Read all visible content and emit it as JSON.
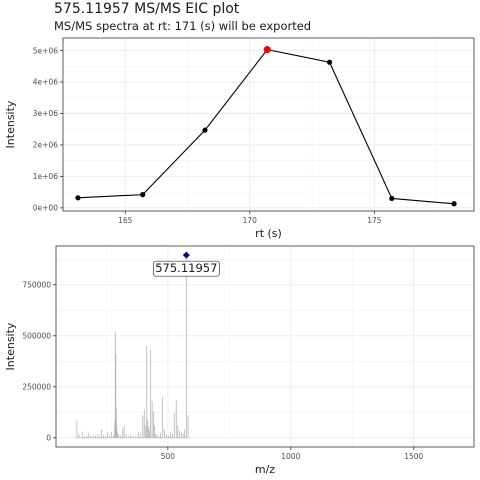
{
  "header": {
    "title": "575.11957 MS/MS EIC plot",
    "subtitle": "MS/MS spectra at rt: 171 (s) will be exported"
  },
  "chart_data": [
    {
      "type": "line",
      "xlabel": "rt (s)",
      "ylabel": "Intensity",
      "xlim": [
        162.5,
        179
      ],
      "ylim": [
        -100000,
        5400000
      ],
      "x_ticks": [
        165,
        170,
        175
      ],
      "x_tick_labels": [
        "165",
        "170",
        "175"
      ],
      "y_ticks": [
        0,
        1000000,
        2000000,
        3000000,
        4000000,
        5000000
      ],
      "y_tick_labels": [
        "0e+00",
        "1e+06",
        "2e+06",
        "3e+06",
        "4e+06",
        "5e+06"
      ],
      "grid": true,
      "series": [
        {
          "x": [
            163.1,
            165.7,
            168.2,
            170.7,
            173.2,
            175.7,
            178.2
          ],
          "y": [
            320000,
            420000,
            2470000,
            5030000,
            4630000,
            300000,
            130000
          ]
        }
      ],
      "highlight": {
        "x": 170.7,
        "y": 5030000,
        "color": "#ff0000"
      },
      "colors": {
        "line": "#000000",
        "point": "#000000",
        "highlight": "#ff0000"
      }
    },
    {
      "type": "bar",
      "xlabel": "m/z",
      "ylabel": "Intensity",
      "xlim": [
        45,
        1745
      ],
      "ylim": [
        -45000,
        940000
      ],
      "x_ticks": [
        500,
        1000,
        1500
      ],
      "x_tick_labels": [
        "500",
        "1000",
        "1500"
      ],
      "y_ticks": [
        0,
        250000,
        500000,
        750000
      ],
      "y_tick_labels": [
        "0",
        "250000",
        "500000",
        "750000"
      ],
      "grid": true,
      "precursor": {
        "mz": 575.11957,
        "intensity": 895000,
        "label": "575.11957",
        "color": "#00008b"
      },
      "peaks": {
        "mz": [
          130,
          138,
          152,
          160,
          170,
          178,
          186,
          195,
          205,
          215,
          222,
          230,
          238,
          246,
          255,
          262,
          270,
          278,
          284,
          286,
          288,
          290,
          292,
          296,
          300,
          308,
          316,
          322,
          330,
          340,
          350,
          360,
          370,
          380,
          390,
          398,
          404,
          410,
          414,
          418,
          422,
          426,
          430,
          436,
          442,
          446,
          450,
          456,
          462,
          470,
          478,
          486,
          494,
          502,
          510,
          518,
          526,
          534,
          540,
          548,
          556,
          562,
          568,
          575.11957,
          582
        ],
        "intensity": [
          85000,
          20000,
          30000,
          8000,
          12000,
          25000,
          9000,
          15000,
          10000,
          18000,
          6000,
          40000,
          12000,
          8000,
          25000,
          10000,
          30000,
          15000,
          80000,
          520000,
          410000,
          150000,
          60000,
          25000,
          18000,
          12000,
          45000,
          60000,
          20000,
          10000,
          15000,
          8000,
          12000,
          30000,
          25000,
          110000,
          140000,
          60000,
          450000,
          90000,
          55000,
          35000,
          430000,
          180000,
          130000,
          60000,
          20000,
          15000,
          10000,
          25000,
          200000,
          40000,
          15000,
          10000,
          30000,
          20000,
          120000,
          185000,
          60000,
          35000,
          25000,
          20000,
          40000,
          895000,
          110000
        ]
      },
      "colors": {
        "peak": "#b3b3b3",
        "precursor": "#00008b"
      }
    }
  ]
}
